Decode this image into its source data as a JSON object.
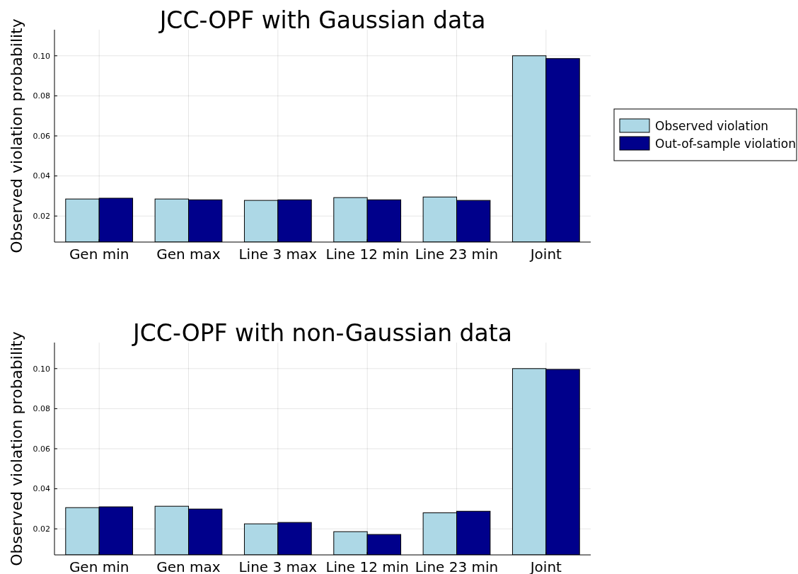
{
  "chart_data": [
    {
      "type": "bar",
      "title": "JCC-OPF with Gaussian data",
      "ylabel": "Observed violation probability",
      "categories": [
        "Gen min",
        "Gen max",
        "Line 3 max",
        "Line 12 min",
        "Line 23 min",
        "Joint"
      ],
      "series": [
        {
          "name": "Observed violation",
          "color": "#add8e6",
          "values": [
            0.0285,
            0.0285,
            0.0278,
            0.0292,
            0.0295,
            0.1
          ]
        },
        {
          "name": "Out-of-sample violation",
          "color": "#00008b",
          "values": [
            0.0289,
            0.0281,
            0.0281,
            0.0281,
            0.0278,
            0.0986
          ]
        }
      ],
      "ylim": [
        0.007,
        0.113
      ],
      "yticks": [
        {
          "value": 0.02,
          "label": "0.02"
        },
        {
          "value": 0.04,
          "label": "0.04"
        },
        {
          "value": 0.06,
          "label": "0.06"
        },
        {
          "value": 0.08,
          "label": "0.08"
        },
        {
          "value": 0.1,
          "label": "0.10"
        }
      ],
      "grid": true,
      "legend": "right"
    },
    {
      "type": "bar",
      "title": "JCC-OPF with non-Gaussian data",
      "ylabel": "Observed violation probability",
      "categories": [
        "Gen min",
        "Gen max",
        "Line 3 max",
        "Line 12 min",
        "Line 23 min",
        "Joint"
      ],
      "series": [
        {
          "color": "#add8e6",
          "values": [
            0.0306,
            0.0313,
            0.0225,
            0.0186,
            0.028,
            0.1
          ]
        },
        {
          "color": "#00008b",
          "values": [
            0.031,
            0.0299,
            0.0232,
            0.0172,
            0.0288,
            0.0996
          ]
        }
      ],
      "ylim": [
        0.007,
        0.113
      ],
      "yticks": [
        {
          "value": 0.02,
          "label": "0.02"
        },
        {
          "value": 0.04,
          "label": "0.04"
        },
        {
          "value": 0.06,
          "label": "0.06"
        },
        {
          "value": 0.08,
          "label": "0.08"
        },
        {
          "value": 0.1,
          "label": "0.10"
        }
      ],
      "grid": true
    }
  ]
}
